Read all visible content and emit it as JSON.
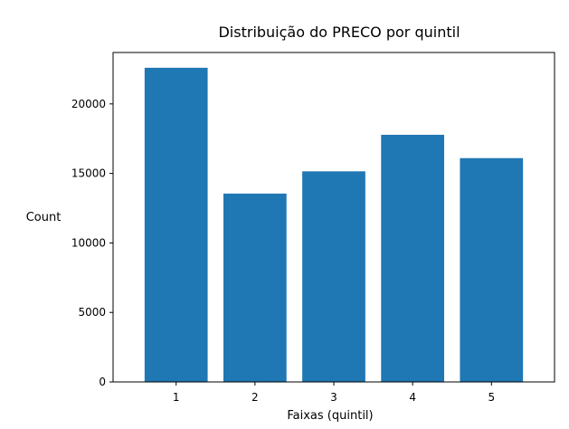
{
  "chart_data": {
    "type": "bar",
    "title": "Distribuição do PRECO por quintil",
    "xlabel": "Faixas (quintil)",
    "ylabel": "Count",
    "categories": [
      "1",
      "2",
      "3",
      "4",
      "5"
    ],
    "values": [
      22600,
      13550,
      15150,
      17780,
      16100
    ],
    "ylim": [
      0,
      23700
    ],
    "yticks": [
      0,
      5000,
      10000,
      15000,
      20000
    ],
    "ytick_labels": [
      "0",
      "5000",
      "10000",
      "15000",
      "20000"
    ],
    "grid": false,
    "legend": "none",
    "bar_color": "#1f77b4"
  }
}
